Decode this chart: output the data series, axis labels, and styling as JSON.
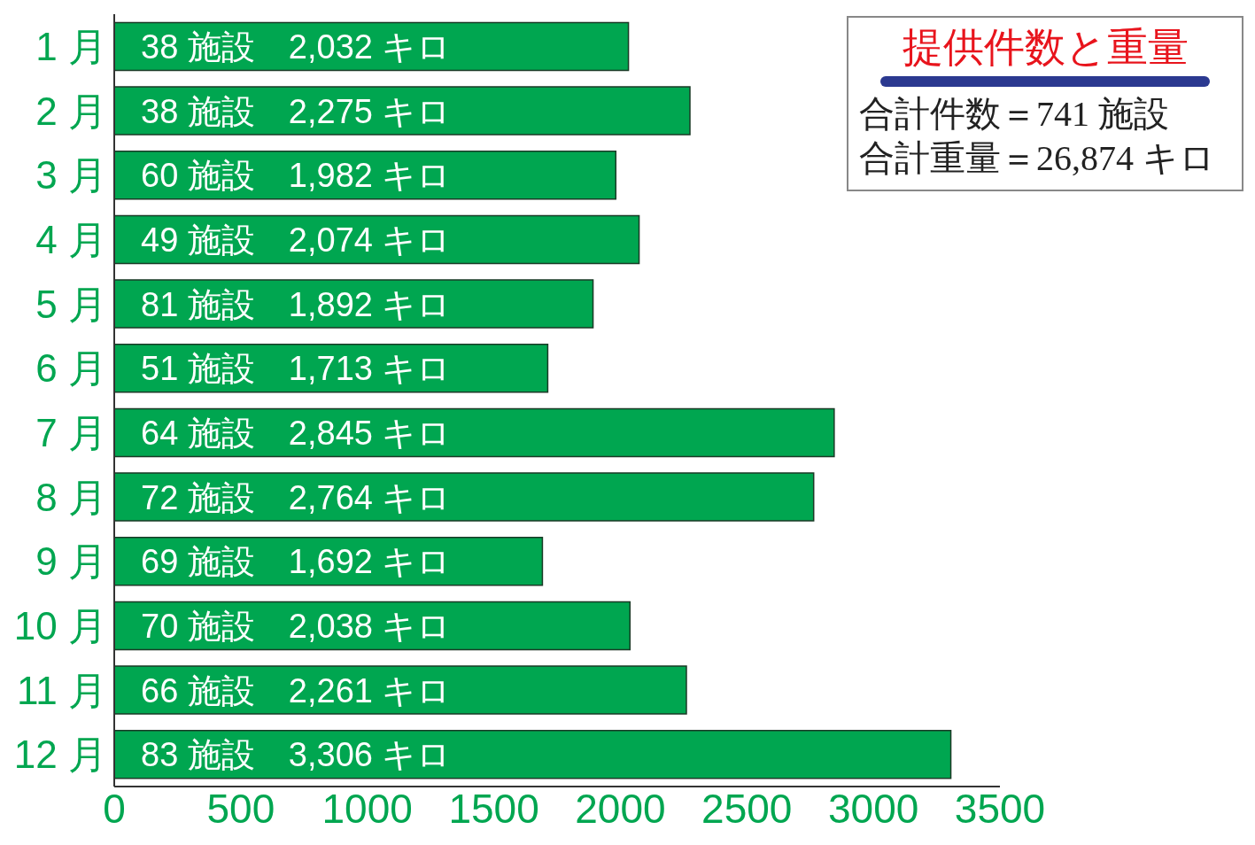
{
  "chart_data": {
    "type": "bar",
    "orientation": "horizontal",
    "title": "提供件数と重量",
    "annotations": [
      "合計件数＝741 施設",
      "合計重量＝26,874 キロ"
    ],
    "categories": [
      "1 月",
      "2 月",
      "3 月",
      "4 月",
      "5 月",
      "6 月",
      "7 月",
      "8 月",
      "9 月",
      "10 月",
      "11 月",
      "12 月"
    ],
    "values": [
      2032,
      2275,
      1982,
      2074,
      1892,
      1713,
      2845,
      2764,
      1692,
      2038,
      2261,
      3306
    ],
    "value_labels": [
      "38 施設　2,032 キロ",
      "38 施設　2,275 キロ",
      "60 施設　1,982 キロ",
      "49 施設　2,074 キロ",
      "81 施設　1,892 キロ",
      "51 施設　1,713 キロ",
      "64 施設　2,845 キロ",
      "72 施設　2,764 キロ",
      "69 施設　1,692 キロ",
      "70 施設　2,038 キロ",
      "66 施設　2,261 キロ",
      "83 施設　3,306 キロ"
    ],
    "color": "#00a650",
    "xlim": [
      0,
      3500
    ],
    "xticks": [
      0,
      500,
      1000,
      1500,
      2000,
      2500,
      3000,
      3500
    ],
    "grid": false
  }
}
